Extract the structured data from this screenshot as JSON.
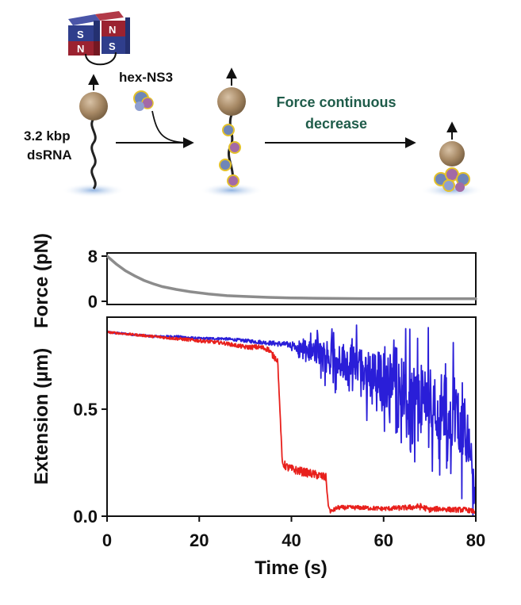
{
  "schematic": {
    "magnet_labels": [
      "S",
      "N",
      "N",
      "S"
    ],
    "dsrna_label_line1": "3.2 kbp",
    "dsrna_label_line2": "dsRNA",
    "protein_label": "hex-NS3",
    "process_label_line1": "Force continuous",
    "process_label_line2": "decrease",
    "colors": {
      "magnet_blue": "#2f3e8c",
      "magnet_red": "#9b2230",
      "bead": "#b09070",
      "surface": "#a9c3e6",
      "process_text": "#1f5c4a"
    }
  },
  "chart_data": [
    {
      "type": "line",
      "name": "force",
      "ylabel": "Force (pN)",
      "xlim": [
        0,
        80
      ],
      "ylim": [
        0,
        8
      ],
      "yticks": [
        "0",
        "8"
      ],
      "series": [
        {
          "name": "force",
          "color": "#8c8c8c",
          "x": [
            0,
            2,
            4,
            6,
            8,
            10,
            12,
            15,
            18,
            22,
            26,
            30,
            35,
            40,
            45,
            50,
            55,
            60,
            65,
            70,
            75,
            80
          ],
          "values": [
            8.0,
            6.6,
            5.4,
            4.5,
            3.7,
            3.1,
            2.6,
            2.1,
            1.7,
            1.3,
            1.0,
            0.85,
            0.7,
            0.6,
            0.55,
            0.5,
            0.48,
            0.47,
            0.46,
            0.45,
            0.45,
            0.45
          ]
        }
      ]
    },
    {
      "type": "line",
      "name": "extension",
      "xlabel": "Time (s)",
      "ylabel": "Extension (µm)",
      "xlim": [
        0,
        80
      ],
      "ylim": [
        0,
        0.93
      ],
      "xticks": [
        "0",
        "20",
        "40",
        "60",
        "80"
      ],
      "yticks": [
        "0.0",
        "0.5"
      ],
      "series": [
        {
          "name": "blue trace",
          "color": "#2a1ed8",
          "x": [
            0,
            5,
            10,
            15,
            20,
            25,
            30,
            35,
            40,
            42,
            44,
            46,
            48,
            50,
            52,
            54,
            56,
            58,
            60,
            62,
            64,
            66,
            68,
            70,
            72,
            74,
            76,
            78,
            79,
            80
          ],
          "values": [
            0.86,
            0.85,
            0.84,
            0.84,
            0.83,
            0.83,
            0.82,
            0.81,
            0.8,
            0.79,
            0.77,
            0.76,
            0.75,
            0.74,
            0.72,
            0.7,
            0.68,
            0.66,
            0.64,
            0.62,
            0.6,
            0.58,
            0.56,
            0.54,
            0.52,
            0.5,
            0.48,
            0.42,
            0.25,
            0.05
          ],
          "noise": [
            0.005,
            0.005,
            0.005,
            0.005,
            0.006,
            0.006,
            0.008,
            0.01,
            0.015,
            0.03,
            0.045,
            0.06,
            0.07,
            0.08,
            0.09,
            0.1,
            0.11,
            0.12,
            0.13,
            0.14,
            0.14,
            0.15,
            0.15,
            0.16,
            0.16,
            0.17,
            0.17,
            0.17,
            0.15,
            0.05
          ]
        },
        {
          "name": "red trace",
          "color": "#e8201c",
          "x": [
            0,
            5,
            10,
            15,
            20,
            25,
            30,
            33,
            35,
            36,
            37,
            37.5,
            38,
            39,
            40,
            42,
            44,
            46,
            47.5,
            48,
            48.5,
            50,
            55,
            60,
            65,
            68,
            70,
            72,
            75,
            78,
            80
          ],
          "values": [
            0.86,
            0.85,
            0.84,
            0.83,
            0.82,
            0.81,
            0.79,
            0.79,
            0.78,
            0.75,
            0.73,
            0.5,
            0.25,
            0.23,
            0.22,
            0.21,
            0.2,
            0.19,
            0.18,
            0.05,
            0.02,
            0.04,
            0.04,
            0.035,
            0.04,
            0.045,
            0.03,
            0.035,
            0.03,
            0.03,
            0.02
          ],
          "noise": [
            0.005,
            0.005,
            0.006,
            0.007,
            0.008,
            0.008,
            0.01,
            0.012,
            0.012,
            0.015,
            0.015,
            0.0,
            0.02,
            0.02,
            0.02,
            0.02,
            0.02,
            0.02,
            0.02,
            0.0,
            0.01,
            0.01,
            0.01,
            0.01,
            0.012,
            0.015,
            0.012,
            0.012,
            0.012,
            0.012,
            0.01
          ]
        }
      ]
    }
  ]
}
